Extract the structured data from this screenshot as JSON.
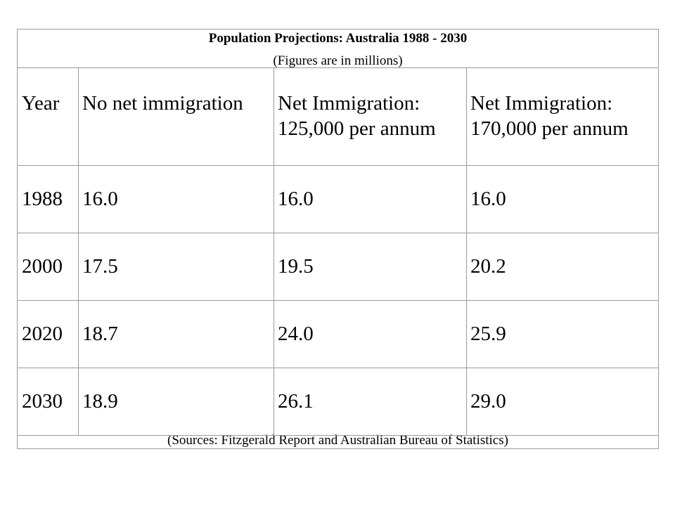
{
  "chart_data": {
    "type": "table",
    "title": "Population Projections: Australia 1988 - 2030",
    "subtitle": "(Figures are in millions)",
    "columns": [
      "Year",
      "No net immigration",
      "Net Immigration: 125,000 per annum",
      "Net Immigration: 170,000 per annum"
    ],
    "header_lines": [
      [
        "Year"
      ],
      [
        "No net immigration"
      ],
      [
        "Net Immigration:",
        "125,000 per annum"
      ],
      [
        "Net Immigration:",
        "170,000 per annum"
      ]
    ],
    "rows": [
      [
        "1988",
        "16.0",
        "16.0",
        "16.0"
      ],
      [
        "2000",
        "17.5",
        "19.5",
        "20.2"
      ],
      [
        "2020",
        "18.7",
        "24.0",
        "25.9"
      ],
      [
        "2030",
        "18.9",
        "26.1",
        "29.0"
      ]
    ],
    "source": "(Sources: Fitzgerald Report and Australian Bureau of Statistics)"
  }
}
